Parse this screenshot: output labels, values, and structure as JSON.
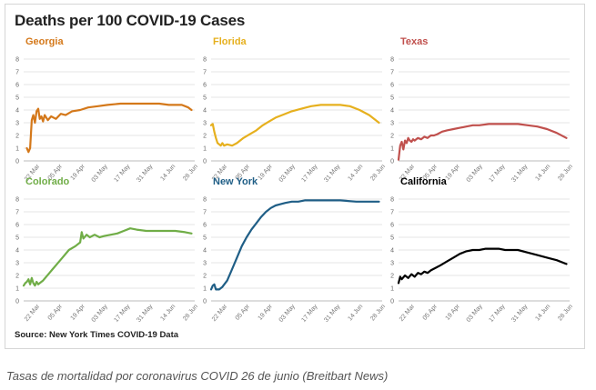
{
  "figure": {
    "title": "Deaths per 100 COVID-19 Cases",
    "source": "Source: New York Times COVID-19 Data"
  },
  "caption": "Tasas de mortalidad por coronavirus COVID 26 de junio (Breitbart News)",
  "chart_data": {
    "type": "line",
    "title": "Deaths per 100 COVID-19 Cases",
    "xlabel": "",
    "ylabel": "",
    "ylim": [
      0,
      8
    ],
    "yticks": [
      0,
      1,
      2,
      3,
      4,
      5,
      6,
      7,
      8
    ],
    "x_tick_labels": [
      "22 Mar",
      "05 Apr",
      "19 Apr",
      "03 May",
      "17 May",
      "31 May",
      "14 Jun",
      "28 Jun"
    ],
    "x_tick_days": [
      0,
      14,
      28,
      42,
      56,
      70,
      84,
      98
    ],
    "x_range_days": [
      -10,
      96
    ],
    "x_unit": "days since 22 Mar 2020",
    "grid": true,
    "panels": [
      {
        "name": "Georgia",
        "color": "#d4781a",
        "x": [
          -8,
          -7,
          -6,
          -5,
          -4,
          -3,
          -2,
          -1,
          0,
          1,
          2,
          3,
          5,
          7,
          10,
          13,
          16,
          20,
          25,
          30,
          36,
          42,
          50,
          58,
          66,
          74,
          80,
          84,
          88,
          92,
          94
        ],
        "y": [
          1.0,
          0.7,
          1.0,
          3.2,
          3.6,
          3.0,
          3.9,
          4.1,
          3.3,
          3.5,
          3.1,
          3.6,
          3.2,
          3.5,
          3.3,
          3.7,
          3.6,
          3.9,
          4.0,
          4.2,
          4.3,
          4.4,
          4.5,
          4.5,
          4.5,
          4.5,
          4.4,
          4.4,
          4.4,
          4.2,
          4.0
        ]
      },
      {
        "name": "Florida",
        "color": "#e6b01e",
        "x": [
          -10,
          -9,
          -8,
          -7,
          -6,
          -5,
          -4,
          -3,
          -2,
          0,
          3,
          6,
          10,
          14,
          18,
          22,
          26,
          30,
          34,
          40,
          46,
          52,
          58,
          64,
          70,
          76,
          82,
          88,
          94
        ],
        "y": [
          2.8,
          2.9,
          2.3,
          1.8,
          1.4,
          1.3,
          1.2,
          1.4,
          1.2,
          1.3,
          1.2,
          1.4,
          1.8,
          2.1,
          2.4,
          2.8,
          3.1,
          3.4,
          3.6,
          3.9,
          4.1,
          4.3,
          4.4,
          4.4,
          4.4,
          4.3,
          4.0,
          3.6,
          3.0
        ]
      },
      {
        "name": "Texas",
        "color": "#c0504d",
        "x": [
          -10,
          -9,
          -8,
          -7,
          -6,
          -5,
          -4,
          -3,
          -2,
          -1,
          0,
          2,
          4,
          6,
          8,
          10,
          12,
          14,
          17,
          20,
          24,
          28,
          32,
          36,
          40,
          46,
          52,
          58,
          64,
          70,
          76,
          82,
          88,
          94
        ],
        "y": [
          0.1,
          1.2,
          1.5,
          0.9,
          1.6,
          1.4,
          1.8,
          1.6,
          1.5,
          1.7,
          1.6,
          1.8,
          1.7,
          1.9,
          1.8,
          2.0,
          2.0,
          2.1,
          2.3,
          2.4,
          2.5,
          2.6,
          2.7,
          2.8,
          2.8,
          2.9,
          2.9,
          2.9,
          2.9,
          2.8,
          2.7,
          2.5,
          2.2,
          1.8
        ]
      },
      {
        "name": "Colorado",
        "color": "#70ad47",
        "x": [
          -10,
          -9,
          -8,
          -7,
          -6,
          -5,
          -4,
          -3,
          -2,
          -1,
          0,
          2,
          4,
          6,
          8,
          10,
          14,
          18,
          22,
          25,
          26,
          27,
          29,
          31,
          34,
          37,
          40,
          44,
          48,
          52,
          56,
          60,
          66,
          72,
          78,
          84,
          90,
          94
        ],
        "y": [
          1.2,
          1.4,
          1.5,
          1.7,
          1.3,
          1.8,
          1.4,
          1.2,
          1.5,
          1.3,
          1.4,
          1.6,
          1.9,
          2.2,
          2.5,
          2.8,
          3.4,
          4.0,
          4.3,
          4.6,
          5.4,
          4.9,
          5.2,
          5.0,
          5.2,
          5.0,
          5.1,
          5.2,
          5.3,
          5.5,
          5.7,
          5.6,
          5.5,
          5.5,
          5.5,
          5.5,
          5.4,
          5.3
        ]
      },
      {
        "name": "New York",
        "color": "#1f5e86",
        "x": [
          -10,
          -9,
          -8,
          -7,
          -6,
          -5,
          -3,
          0,
          3,
          6,
          9,
          12,
          15,
          18,
          21,
          24,
          27,
          30,
          33,
          36,
          40,
          44,
          48,
          52,
          60,
          70,
          80,
          88,
          94
        ],
        "y": [
          0.9,
          1.2,
          1.3,
          0.9,
          0.9,
          0.9,
          1.1,
          1.6,
          2.5,
          3.4,
          4.3,
          5.0,
          5.6,
          6.1,
          6.6,
          7.0,
          7.3,
          7.5,
          7.6,
          7.7,
          7.8,
          7.8,
          7.9,
          7.9,
          7.9,
          7.9,
          7.8,
          7.8,
          7.8
        ]
      },
      {
        "name": "California",
        "color": "#000000",
        "x": [
          -10,
          -9,
          -8,
          -6,
          -4,
          -2,
          0,
          2,
          4,
          6,
          8,
          10,
          13,
          16,
          20,
          24,
          28,
          32,
          36,
          40,
          44,
          48,
          52,
          56,
          60,
          64,
          70,
          76,
          82,
          88,
          94
        ],
        "y": [
          1.4,
          1.9,
          1.7,
          2.0,
          1.8,
          2.1,
          1.9,
          2.2,
          2.1,
          2.3,
          2.2,
          2.4,
          2.6,
          2.8,
          3.1,
          3.4,
          3.7,
          3.9,
          4.0,
          4.0,
          4.1,
          4.1,
          4.1,
          4.0,
          4.0,
          4.0,
          3.8,
          3.6,
          3.4,
          3.2,
          2.9
        ]
      }
    ]
  }
}
